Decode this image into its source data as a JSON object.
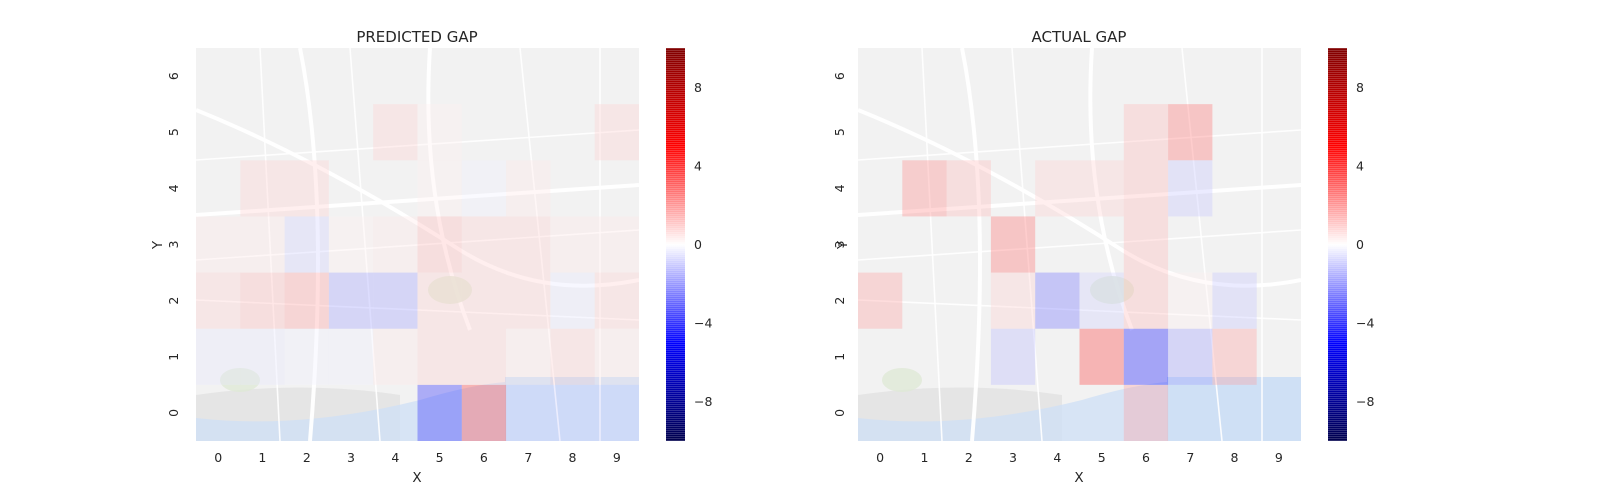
{
  "chart_data": [
    {
      "type": "heatmap",
      "title": "PREDICTED GAP",
      "xlabel": "X",
      "ylabel": "Y",
      "x_ticks": [
        "0",
        "1",
        "2",
        "3",
        "4",
        "5",
        "6",
        "7",
        "8",
        "9"
      ],
      "y_ticks": [
        "0",
        "1",
        "2",
        "3",
        "4",
        "5",
        "6"
      ],
      "xlim": [
        -0.5,
        9.5
      ],
      "ylim": [
        -0.5,
        6.5
      ],
      "colormap": "seismic",
      "vmin": -10,
      "vmax": 10,
      "colorbar_ticks": [
        8,
        4,
        0,
        -4,
        -8
      ],
      "colorbar_tick_labels": [
        "8",
        "4",
        "0",
        "−4",
        "−8"
      ],
      "background": "street map",
      "cells": [
        {
          "x": 5,
          "y": 0,
          "value": -4.5
        },
        {
          "x": 6,
          "y": 0,
          "value": 4
        },
        {
          "x": 7,
          "y": 0,
          "value": -1
        },
        {
          "x": 8,
          "y": 0,
          "value": -1
        },
        {
          "x": 9,
          "y": 0,
          "value": -1
        },
        {
          "x": 0,
          "y": 1,
          "value": -0.5
        },
        {
          "x": 1,
          "y": 1,
          "value": -0.5
        },
        {
          "x": 2,
          "y": 1,
          "value": -0.3
        },
        {
          "x": 3,
          "y": 1,
          "value": -0.3
        },
        {
          "x": 4,
          "y": 1,
          "value": 0.5
        },
        {
          "x": 5,
          "y": 1,
          "value": 1
        },
        {
          "x": 6,
          "y": 1,
          "value": 1
        },
        {
          "x": 7,
          "y": 1,
          "value": 0.5
        },
        {
          "x": 8,
          "y": 1,
          "value": 1
        },
        {
          "x": 9,
          "y": 1,
          "value": 0.5
        },
        {
          "x": 0,
          "y": 2,
          "value": 1
        },
        {
          "x": 1,
          "y": 2,
          "value": 1.5
        },
        {
          "x": 2,
          "y": 2,
          "value": 2
        },
        {
          "x": 3,
          "y": 2,
          "value": -2
        },
        {
          "x": 4,
          "y": 2,
          "value": -2
        },
        {
          "x": 5,
          "y": 2,
          "value": 1
        },
        {
          "x": 6,
          "y": 2,
          "value": 1
        },
        {
          "x": 7,
          "y": 2,
          "value": 1
        },
        {
          "x": 8,
          "y": 2,
          "value": -0.5
        },
        {
          "x": 9,
          "y": 2,
          "value": 1
        },
        {
          "x": 0,
          "y": 3,
          "value": 0.5
        },
        {
          "x": 1,
          "y": 3,
          "value": 0.5
        },
        {
          "x": 2,
          "y": 3,
          "value": -1
        },
        {
          "x": 3,
          "y": 3,
          "value": 0.3
        },
        {
          "x": 4,
          "y": 3,
          "value": 0.5
        },
        {
          "x": 5,
          "y": 3,
          "value": 1.5
        },
        {
          "x": 6,
          "y": 3,
          "value": 1
        },
        {
          "x": 7,
          "y": 3,
          "value": 1
        },
        {
          "x": 8,
          "y": 3,
          "value": 0.5
        },
        {
          "x": 9,
          "y": 3,
          "value": 0.5
        },
        {
          "x": 1,
          "y": 4,
          "value": 1
        },
        {
          "x": 2,
          "y": 4,
          "value": 1
        },
        {
          "x": 5,
          "y": 4,
          "value": 0.3
        },
        {
          "x": 6,
          "y": 4,
          "value": -0.3
        },
        {
          "x": 7,
          "y": 4,
          "value": 0.5
        },
        {
          "x": 4,
          "y": 5,
          "value": 1
        },
        {
          "x": 5,
          "y": 5,
          "value": 0.3
        },
        {
          "x": 9,
          "y": 5,
          "value": 1
        }
      ]
    },
    {
      "type": "heatmap",
      "title": "ACTUAL GAP",
      "xlabel": "X",
      "ylabel": "Y",
      "x_ticks": [
        "0",
        "1",
        "2",
        "3",
        "4",
        "5",
        "6",
        "7",
        "8",
        "9"
      ],
      "y_ticks": [
        "0",
        "1",
        "2",
        "3",
        "4",
        "5",
        "6"
      ],
      "xlim": [
        -0.5,
        9.5
      ],
      "ylim": [
        -0.5,
        6.5
      ],
      "colormap": "seismic",
      "vmin": -10,
      "vmax": 10,
      "colorbar_ticks": [
        8,
        4,
        0,
        -4,
        -8
      ],
      "colorbar_tick_labels": [
        "8",
        "4",
        "0",
        "−4",
        "−8"
      ],
      "background": "street map",
      "cells": [
        {
          "x": 6,
          "y": 0,
          "value": 2
        },
        {
          "x": 3,
          "y": 1,
          "value": -1.5
        },
        {
          "x": 5,
          "y": 1,
          "value": 4
        },
        {
          "x": 6,
          "y": 1,
          "value": -5
        },
        {
          "x": 7,
          "y": 1,
          "value": -2
        },
        {
          "x": 8,
          "y": 1,
          "value": 2
        },
        {
          "x": 0,
          "y": 2,
          "value": 2
        },
        {
          "x": 3,
          "y": 2,
          "value": 1
        },
        {
          "x": 4,
          "y": 2,
          "value": -3
        },
        {
          "x": 5,
          "y": 2,
          "value": -1
        },
        {
          "x": 6,
          "y": 2,
          "value": 1.5
        },
        {
          "x": 7,
          "y": 2,
          "value": 0.3
        },
        {
          "x": 8,
          "y": 2,
          "value": -1.2
        },
        {
          "x": 3,
          "y": 3,
          "value": 3
        },
        {
          "x": 6,
          "y": 3,
          "value": 1.5
        },
        {
          "x": 1,
          "y": 4,
          "value": 2.5
        },
        {
          "x": 2,
          "y": 4,
          "value": 1.5
        },
        {
          "x": 4,
          "y": 4,
          "value": 1
        },
        {
          "x": 5,
          "y": 4,
          "value": 1
        },
        {
          "x": 6,
          "y": 4,
          "value": 1.5
        },
        {
          "x": 7,
          "y": 4,
          "value": -1.2
        },
        {
          "x": 6,
          "y": 5,
          "value": 1.5
        },
        {
          "x": 7,
          "y": 5,
          "value": 3
        }
      ]
    }
  ]
}
